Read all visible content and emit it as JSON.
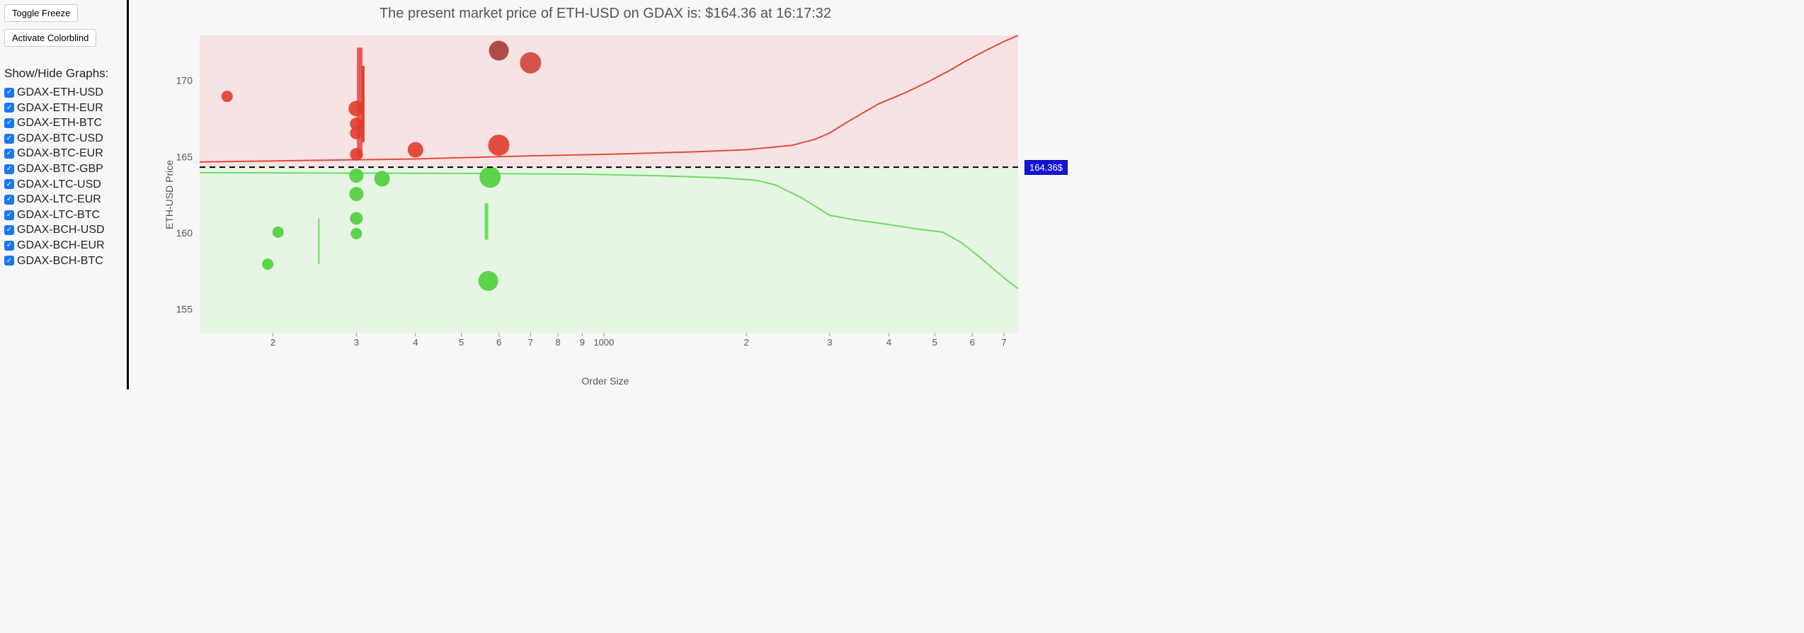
{
  "sidebar": {
    "buttons": {
      "toggle_freeze": "Toggle Freeze",
      "activate_colorblind": "Activate Colorblind"
    },
    "section_title": "Show/Hide Graphs:",
    "graphs": [
      {
        "label": "GDAX-ETH-USD",
        "checked": true
      },
      {
        "label": "GDAX-ETH-EUR",
        "checked": true
      },
      {
        "label": "GDAX-ETH-BTC",
        "checked": true
      },
      {
        "label": "GDAX-BTC-USD",
        "checked": true
      },
      {
        "label": "GDAX-BTC-EUR",
        "checked": true
      },
      {
        "label": "GDAX-BTC-GBP",
        "checked": true
      },
      {
        "label": "GDAX-LTC-USD",
        "checked": true
      },
      {
        "label": "GDAX-LTC-EUR",
        "checked": true
      },
      {
        "label": "GDAX-LTC-BTC",
        "checked": true
      },
      {
        "label": "GDAX-BCH-USD",
        "checked": true
      },
      {
        "label": "GDAX-BCH-EUR",
        "checked": true
      },
      {
        "label": "GDAX-BCH-BTC",
        "checked": true
      }
    ]
  },
  "chart": {
    "title": "The present market price of ETH-USD on GDAX is: $164.36 at 16:17:32",
    "ylabel": "ETH-USD Price",
    "xlabel": "Order Size",
    "price_tag": "164.36$",
    "current_price": 164.36,
    "x_scale": "log",
    "x_min": 140,
    "x_max": 7500,
    "x_ticks": [
      {
        "v": 200,
        "l": "2"
      },
      {
        "v": 300,
        "l": "3"
      },
      {
        "v": 400,
        "l": "4"
      },
      {
        "v": 500,
        "l": "5"
      },
      {
        "v": 600,
        "l": "6"
      },
      {
        "v": 700,
        "l": "7"
      },
      {
        "v": 800,
        "l": "8"
      },
      {
        "v": 900,
        "l": "9"
      },
      {
        "v": 1000,
        "l": "1000"
      },
      {
        "v": 2000,
        "l": "2"
      },
      {
        "v": 3000,
        "l": "3"
      },
      {
        "v": 4000,
        "l": "4"
      },
      {
        "v": 5000,
        "l": "5"
      },
      {
        "v": 6000,
        "l": "6"
      },
      {
        "v": 7000,
        "l": "7"
      }
    ],
    "y_min": 153.5,
    "y_max": 173,
    "y_ticks": [
      155,
      160,
      165,
      170
    ],
    "colors": {
      "ask_fill": "#f7d9d9aa",
      "bid_fill": "#dff5dcaa",
      "ask_line": "#e24a3f",
      "bid_line": "#6fdd63",
      "ask_bubble": "#e23b2e",
      "ask_bubble_dark": "#a63b37",
      "bid_bubble": "#4ecf3b",
      "mid_line": "#000",
      "bg": "#f7f7f7",
      "tick_text": "#555"
    },
    "ask_curve": [
      {
        "x": 140,
        "y": 164.7
      },
      {
        "x": 400,
        "y": 164.9
      },
      {
        "x": 700,
        "y": 165.1
      },
      {
        "x": 1000,
        "y": 165.2
      },
      {
        "x": 1500,
        "y": 165.35
      },
      {
        "x": 2000,
        "y": 165.5
      },
      {
        "x": 2500,
        "y": 165.8
      },
      {
        "x": 2800,
        "y": 166.2
      },
      {
        "x": 3000,
        "y": 166.6
      },
      {
        "x": 3300,
        "y": 167.4
      },
      {
        "x": 3800,
        "y": 168.5
      },
      {
        "x": 4300,
        "y": 169.2
      },
      {
        "x": 4800,
        "y": 169.9
      },
      {
        "x": 5300,
        "y": 170.6
      },
      {
        "x": 5800,
        "y": 171.3
      },
      {
        "x": 6400,
        "y": 172.0
      },
      {
        "x": 7000,
        "y": 172.6
      },
      {
        "x": 7500,
        "y": 173.0
      }
    ],
    "bid_curve": [
      {
        "x": 140,
        "y": 164.0
      },
      {
        "x": 500,
        "y": 163.95
      },
      {
        "x": 900,
        "y": 163.9
      },
      {
        "x": 1300,
        "y": 163.8
      },
      {
        "x": 1800,
        "y": 163.65
      },
      {
        "x": 2100,
        "y": 163.5
      },
      {
        "x": 2300,
        "y": 163.2
      },
      {
        "x": 2600,
        "y": 162.4
      },
      {
        "x": 3000,
        "y": 161.2
      },
      {
        "x": 3400,
        "y": 160.9
      },
      {
        "x": 4000,
        "y": 160.6
      },
      {
        "x": 4600,
        "y": 160.3
      },
      {
        "x": 5200,
        "y": 160.1
      },
      {
        "x": 5700,
        "y": 159.4
      },
      {
        "x": 6200,
        "y": 158.5
      },
      {
        "x": 6700,
        "y": 157.6
      },
      {
        "x": 7200,
        "y": 156.8
      },
      {
        "x": 7500,
        "y": 156.4
      }
    ],
    "ask_bubbles": [
      {
        "x": 160,
        "y": 169.0,
        "r": 8,
        "color": "#e23b2e"
      },
      {
        "x": 300,
        "y": 165.2,
        "r": 9,
        "color": "#e23b2e"
      },
      {
        "x": 300,
        "y": 166.6,
        "r": 9,
        "color": "#e23b2e"
      },
      {
        "x": 300,
        "y": 167.2,
        "r": 9,
        "color": "#e23b2e"
      },
      {
        "x": 300,
        "y": 168.2,
        "r": 11,
        "color": "#e23b2e"
      },
      {
        "x": 400,
        "y": 165.5,
        "r": 11,
        "color": "#e23b2e"
      },
      {
        "x": 600,
        "y": 165.8,
        "r": 15,
        "color": "#e23b2e"
      },
      {
        "x": 600,
        "y": 172.0,
        "r": 14,
        "color": "#a63b37"
      },
      {
        "x": 700,
        "y": 171.2,
        "r": 15,
        "color": "#cf4338"
      }
    ],
    "bid_bubbles": [
      {
        "x": 205,
        "y": 160.1,
        "r": 8
      },
      {
        "x": 195,
        "y": 158.0,
        "r": 8
      },
      {
        "x": 300,
        "y": 160.0,
        "r": 8
      },
      {
        "x": 300,
        "y": 161.0,
        "r": 9
      },
      {
        "x": 300,
        "y": 162.6,
        "r": 10
      },
      {
        "x": 300,
        "y": 163.8,
        "r": 10
      },
      {
        "x": 340,
        "y": 163.6,
        "r": 11
      },
      {
        "x": 575,
        "y": 163.7,
        "r": 15
      },
      {
        "x": 570,
        "y": 156.9,
        "r": 14
      }
    ],
    "v_bars": [
      {
        "x": 250,
        "y1": 158.0,
        "y2": 161.0,
        "w": 2,
        "color": "#6fdd63"
      },
      {
        "x": 305,
        "y1": 165.0,
        "y2": 172.2,
        "w": 8,
        "color": "#e23b2ecc"
      },
      {
        "x": 310,
        "y1": 166.0,
        "y2": 171.0,
        "w": 4,
        "color": "#e23b2e"
      },
      {
        "x": 565,
        "y1": 159.6,
        "y2": 162.0,
        "w": 5,
        "color": "#6fdd63"
      }
    ]
  }
}
